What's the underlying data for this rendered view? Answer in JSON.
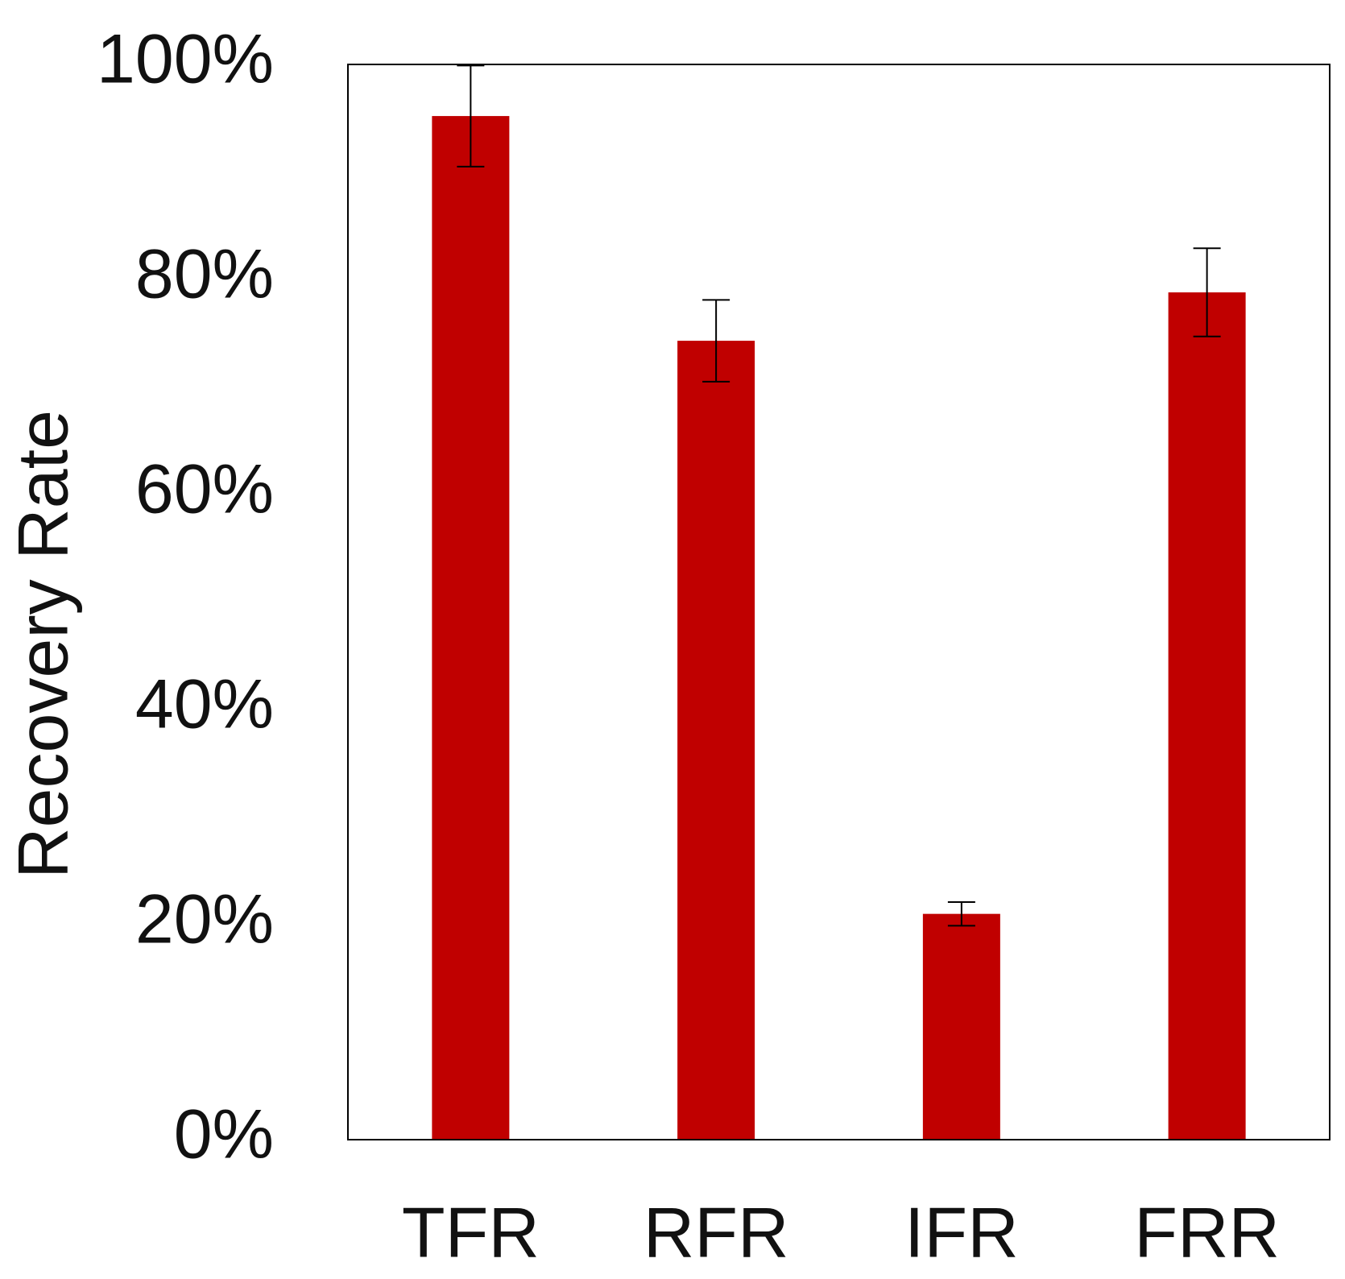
{
  "chart_data": {
    "type": "bar",
    "y_label": "Recovery Rate",
    "categories": [
      "TFR",
      "RFR",
      "IFR",
      "FRR"
    ],
    "values": [
      95.2,
      74.3,
      21.0,
      78.8
    ],
    "errors": [
      4.7,
      3.8,
      1.1,
      4.1
    ],
    "color": "#c00000",
    "ylim": [
      0,
      100
    ],
    "yticks": [
      {
        "value": 0,
        "label": "0%"
      },
      {
        "value": 20,
        "label": "20%"
      },
      {
        "value": 40,
        "label": "40%"
      },
      {
        "value": 60,
        "label": "60%"
      },
      {
        "value": 80,
        "label": "80%"
      },
      {
        "value": 100,
        "label": "100%"
      }
    ],
    "grid": false
  }
}
